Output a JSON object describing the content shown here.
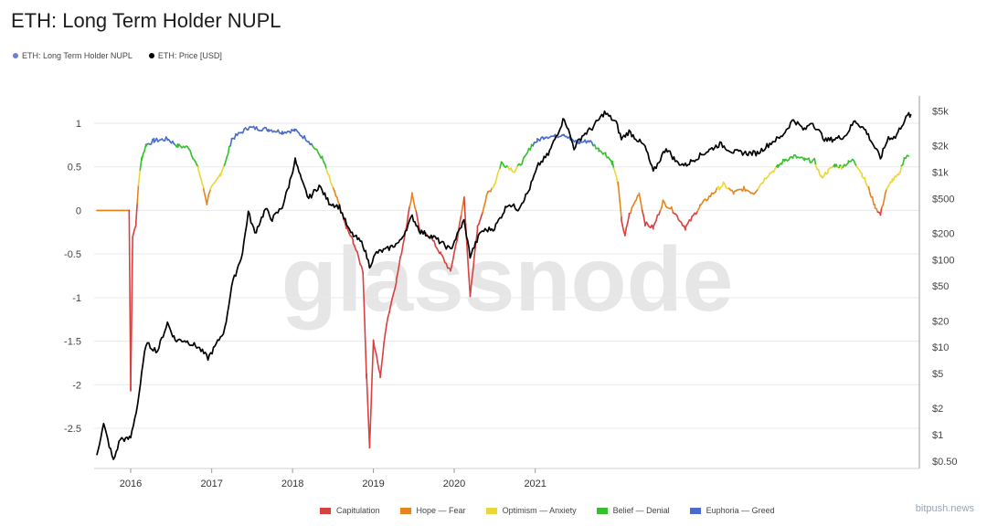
{
  "title": "ETH: Long Term Holder NUPL",
  "source_label": "bitpush.news",
  "watermark": "glassnode",
  "top_legend": [
    {
      "label": "ETH: Long Term Holder NUPL",
      "color": "#6f7fd1"
    },
    {
      "label": "ETH: Price [USD]",
      "color": "#000000"
    }
  ],
  "zone_legend": [
    {
      "label": "Capitulation",
      "color": "#d94040"
    },
    {
      "label": "Hope — Fear",
      "color": "#e8841c"
    },
    {
      "label": "Optimism — Anxiety",
      "color": "#ead839"
    },
    {
      "label": "Belief — Denial",
      "color": "#35c12d"
    },
    {
      "label": "Euphoria — Greed",
      "color": "#4a6cc8"
    }
  ],
  "chart_data": {
    "type": "line",
    "xlabel": "",
    "ylabel": "",
    "x_ticks": [
      "2016",
      "2017",
      "2018",
      "2019",
      "2020",
      "2021"
    ],
    "y_left_ticks": [
      "1",
      "0.5",
      "0",
      "-0.5",
      "-1",
      "-1.5",
      "-2",
      "-2.5"
    ],
    "y_right_ticks": [
      "$5k",
      "$2k",
      "$1k",
      "$500",
      "$200",
      "$100",
      "$50",
      "$20",
      "$10",
      "$5",
      "$2",
      "$1",
      "$0.50"
    ],
    "ylim_left": [
      -2.8,
      1.25
    ],
    "ylim_right": [
      0.4,
      6000
    ],
    "right_axis_scale": "log",
    "grid": true,
    "series": [
      {
        "name": "ETH: Long Term Holder NUPL",
        "axis": "left",
        "points": [
          [
            "2015-08-01",
            0
          ],
          [
            "2015-11-01",
            0
          ],
          [
            "2015-12-25",
            0
          ],
          [
            "2016-01-01",
            -2.05
          ],
          [
            "2016-01-10",
            -0.3
          ],
          [
            "2016-01-25",
            -0.15
          ],
          [
            "2016-02-05",
            0.3
          ],
          [
            "2016-02-20",
            0.6
          ],
          [
            "2016-03-10",
            0.75
          ],
          [
            "2016-04-15",
            0.8
          ],
          [
            "2016-06-15",
            0.82
          ],
          [
            "2016-08-01",
            0.74
          ],
          [
            "2016-09-20",
            0.72
          ],
          [
            "2016-11-01",
            0.48
          ],
          [
            "2016-11-25",
            0.25
          ],
          [
            "2016-12-10",
            0.08
          ],
          [
            "2016-12-25",
            0.25
          ],
          [
            "2017-01-15",
            0.3
          ],
          [
            "2017-02-10",
            0.42
          ],
          [
            "2017-03-10",
            0.6
          ],
          [
            "2017-04-01",
            0.82
          ],
          [
            "2017-06-15",
            0.95
          ],
          [
            "2017-09-15",
            0.93
          ],
          [
            "2017-11-15",
            0.9
          ],
          [
            "2018-01-10",
            0.92
          ],
          [
            "2018-03-15",
            0.8
          ],
          [
            "2018-05-15",
            0.6
          ],
          [
            "2018-06-15",
            0.38
          ],
          [
            "2018-07-10",
            0.2
          ],
          [
            "2018-08-01",
            0.05
          ],
          [
            "2018-09-01",
            -0.2
          ],
          [
            "2018-10-01",
            -0.35
          ],
          [
            "2018-11-15",
            -0.7
          ],
          [
            "2018-12-01",
            -1.9
          ],
          [
            "2018-12-15",
            -2.7
          ],
          [
            "2019-01-01",
            -1.5
          ],
          [
            "2019-02-01",
            -1.9
          ],
          [
            "2019-03-01",
            -1.3
          ],
          [
            "2019-04-15",
            -0.8
          ],
          [
            "2019-06-01",
            -0.15
          ],
          [
            "2019-06-25",
            0.2
          ],
          [
            "2019-08-01",
            -0.25
          ],
          [
            "2019-09-15",
            -0.3
          ],
          [
            "2019-11-01",
            -0.5
          ],
          [
            "2019-12-15",
            -0.7
          ],
          [
            "2020-01-20",
            -0.25
          ],
          [
            "2020-02-15",
            0.15
          ],
          [
            "2020-03-13",
            -1.0
          ],
          [
            "2020-04-15",
            -0.2
          ],
          [
            "2020-06-01",
            0.2
          ],
          [
            "2020-07-01",
            0.3
          ],
          [
            "2020-08-01",
            0.55
          ],
          [
            "2020-10-01",
            0.45
          ],
          [
            "2020-11-15",
            0.6
          ],
          [
            "2020-12-15",
            0.75
          ],
          [
            "2021-01-10",
            0.8
          ],
          [
            "2021-02-15",
            0.85
          ],
          [
            "2021-04-01",
            0.85
          ],
          [
            "2021-05-10",
            0.88
          ],
          [
            "2021-06-15",
            0.8
          ],
          [
            "2021-07-20",
            0.78
          ],
          [
            "2021-09-01",
            0.8
          ],
          [
            "2021-10-15",
            0.7
          ],
          [
            "2021-11-15",
            0.65
          ],
          [
            "2021-12-15",
            0.55
          ],
          [
            "2022-01-10",
            0.3
          ],
          [
            "2022-01-25",
            -0.1
          ],
          [
            "2022-02-10",
            -0.3
          ],
          [
            "2022-03-01",
            -0.05
          ],
          [
            "2022-04-15",
            0.2
          ],
          [
            "2022-05-12",
            -0.15
          ],
          [
            "2022-06-18",
            -0.2
          ],
          [
            "2022-08-01",
            0.1
          ],
          [
            "2022-09-15",
            0.0
          ],
          [
            "2022-11-10",
            -0.2
          ],
          [
            "2023-01-15",
            0.05
          ],
          [
            "2023-03-15",
            0.2
          ],
          [
            "2023-05-01",
            0.3
          ],
          [
            "2023-06-15",
            0.2
          ],
          [
            "2023-08-01",
            0.25
          ],
          [
            "2023-09-15",
            0.2
          ],
          [
            "2023-11-15",
            0.4
          ],
          [
            "2024-01-01",
            0.5
          ],
          [
            "2024-02-01",
            0.58
          ],
          [
            "2024-03-15",
            0.62
          ],
          [
            "2024-05-01",
            0.58
          ],
          [
            "2024-06-15",
            0.57
          ],
          [
            "2024-07-15",
            0.38
          ],
          [
            "2024-08-15",
            0.45
          ],
          [
            "2024-09-15",
            0.52
          ],
          [
            "2024-10-15",
            0.5
          ],
          [
            "2024-11-15",
            0.55
          ],
          [
            "2024-12-10",
            0.58
          ],
          [
            "2025-01-15",
            0.42
          ],
          [
            "2025-02-15",
            0.25
          ],
          [
            "2025-03-15",
            0.05
          ],
          [
            "2025-04-09",
            -0.05
          ],
          [
            "2025-05-01",
            0.2
          ],
          [
            "2025-06-01",
            0.35
          ],
          [
            "2025-07-01",
            0.4
          ],
          [
            "2025-07-25",
            0.6
          ],
          [
            "2025-08-15",
            0.62
          ]
        ]
      },
      {
        "name": "ETH: Price [USD]",
        "axis": "right",
        "points": [
          [
            "2015-08-01",
            0.6
          ],
          [
            "2015-09-01",
            1.3
          ],
          [
            "2015-10-15",
            0.5
          ],
          [
            "2015-11-15",
            0.9
          ],
          [
            "2015-12-15",
            0.88
          ],
          [
            "2016-01-01",
            0.93
          ],
          [
            "2016-02-01",
            2.2
          ],
          [
            "2016-03-10",
            11
          ],
          [
            "2016-05-01",
            9
          ],
          [
            "2016-06-15",
            19
          ],
          [
            "2016-07-20",
            12
          ],
          [
            "2016-09-01",
            12
          ],
          [
            "2016-11-01",
            10
          ],
          [
            "2016-12-15",
            7.5
          ],
          [
            "2017-01-15",
            10
          ],
          [
            "2017-03-01",
            16
          ],
          [
            "2017-04-01",
            50
          ],
          [
            "2017-05-20",
            120
          ],
          [
            "2017-06-15",
            350
          ],
          [
            "2017-07-15",
            200
          ],
          [
            "2017-09-01",
            380
          ],
          [
            "2017-10-01",
            290
          ],
          [
            "2017-11-15",
            400
          ],
          [
            "2017-12-15",
            700
          ],
          [
            "2018-01-13",
            1380
          ],
          [
            "2018-02-10",
            800
          ],
          [
            "2018-03-15",
            500
          ],
          [
            "2018-05-01",
            700
          ],
          [
            "2018-06-15",
            450
          ],
          [
            "2018-08-01",
            400
          ],
          [
            "2018-09-15",
            210
          ],
          [
            "2018-11-15",
            150
          ],
          [
            "2018-12-15",
            85
          ],
          [
            "2019-01-15",
            120
          ],
          [
            "2019-03-01",
            130
          ],
          [
            "2019-05-01",
            160
          ],
          [
            "2019-06-25",
            310
          ],
          [
            "2019-08-01",
            210
          ],
          [
            "2019-10-01",
            180
          ],
          [
            "2019-12-15",
            130
          ],
          [
            "2020-02-14",
            280
          ],
          [
            "2020-03-13",
            110
          ],
          [
            "2020-05-01",
            210
          ],
          [
            "2020-07-01",
            230
          ],
          [
            "2020-09-01",
            440
          ],
          [
            "2020-10-15",
            380
          ],
          [
            "2020-12-01",
            600
          ],
          [
            "2021-01-15",
            1200
          ],
          [
            "2021-03-01",
            1600
          ],
          [
            "2021-05-12",
            4200
          ],
          [
            "2021-06-25",
            1900
          ],
          [
            "2021-08-01",
            2600
          ],
          [
            "2021-09-15",
            3200
          ],
          [
            "2021-11-10",
            4800
          ],
          [
            "2022-01-01",
            3700
          ],
          [
            "2022-01-25",
            2400
          ],
          [
            "2022-03-01",
            2900
          ],
          [
            "2022-05-12",
            1950
          ],
          [
            "2022-06-18",
            1000
          ],
          [
            "2022-08-15",
            1900
          ],
          [
            "2022-10-01",
            1300
          ],
          [
            "2022-11-10",
            1200
          ],
          [
            "2023-01-15",
            1550
          ],
          [
            "2023-04-15",
            2100
          ],
          [
            "2023-06-15",
            1700
          ],
          [
            "2023-08-20",
            1650
          ],
          [
            "2023-10-01",
            1650
          ],
          [
            "2023-12-15",
            2300
          ],
          [
            "2024-01-15",
            2500
          ],
          [
            "2024-03-12",
            4000
          ],
          [
            "2024-05-01",
            3000
          ],
          [
            "2024-06-01",
            3800
          ],
          [
            "2024-08-05",
            2300
          ],
          [
            "2024-09-15",
            2400
          ],
          [
            "2024-11-01",
            2600
          ],
          [
            "2024-12-15",
            3900
          ],
          [
            "2025-02-01",
            3000
          ],
          [
            "2025-03-15",
            1900
          ],
          [
            "2025-04-09",
            1450
          ],
          [
            "2025-05-15",
            2500
          ],
          [
            "2025-06-15",
            2500
          ],
          [
            "2025-07-15",
            3500
          ],
          [
            "2025-08-15",
            4600
          ],
          [
            "2025-08-25",
            4300
          ]
        ]
      }
    ]
  }
}
